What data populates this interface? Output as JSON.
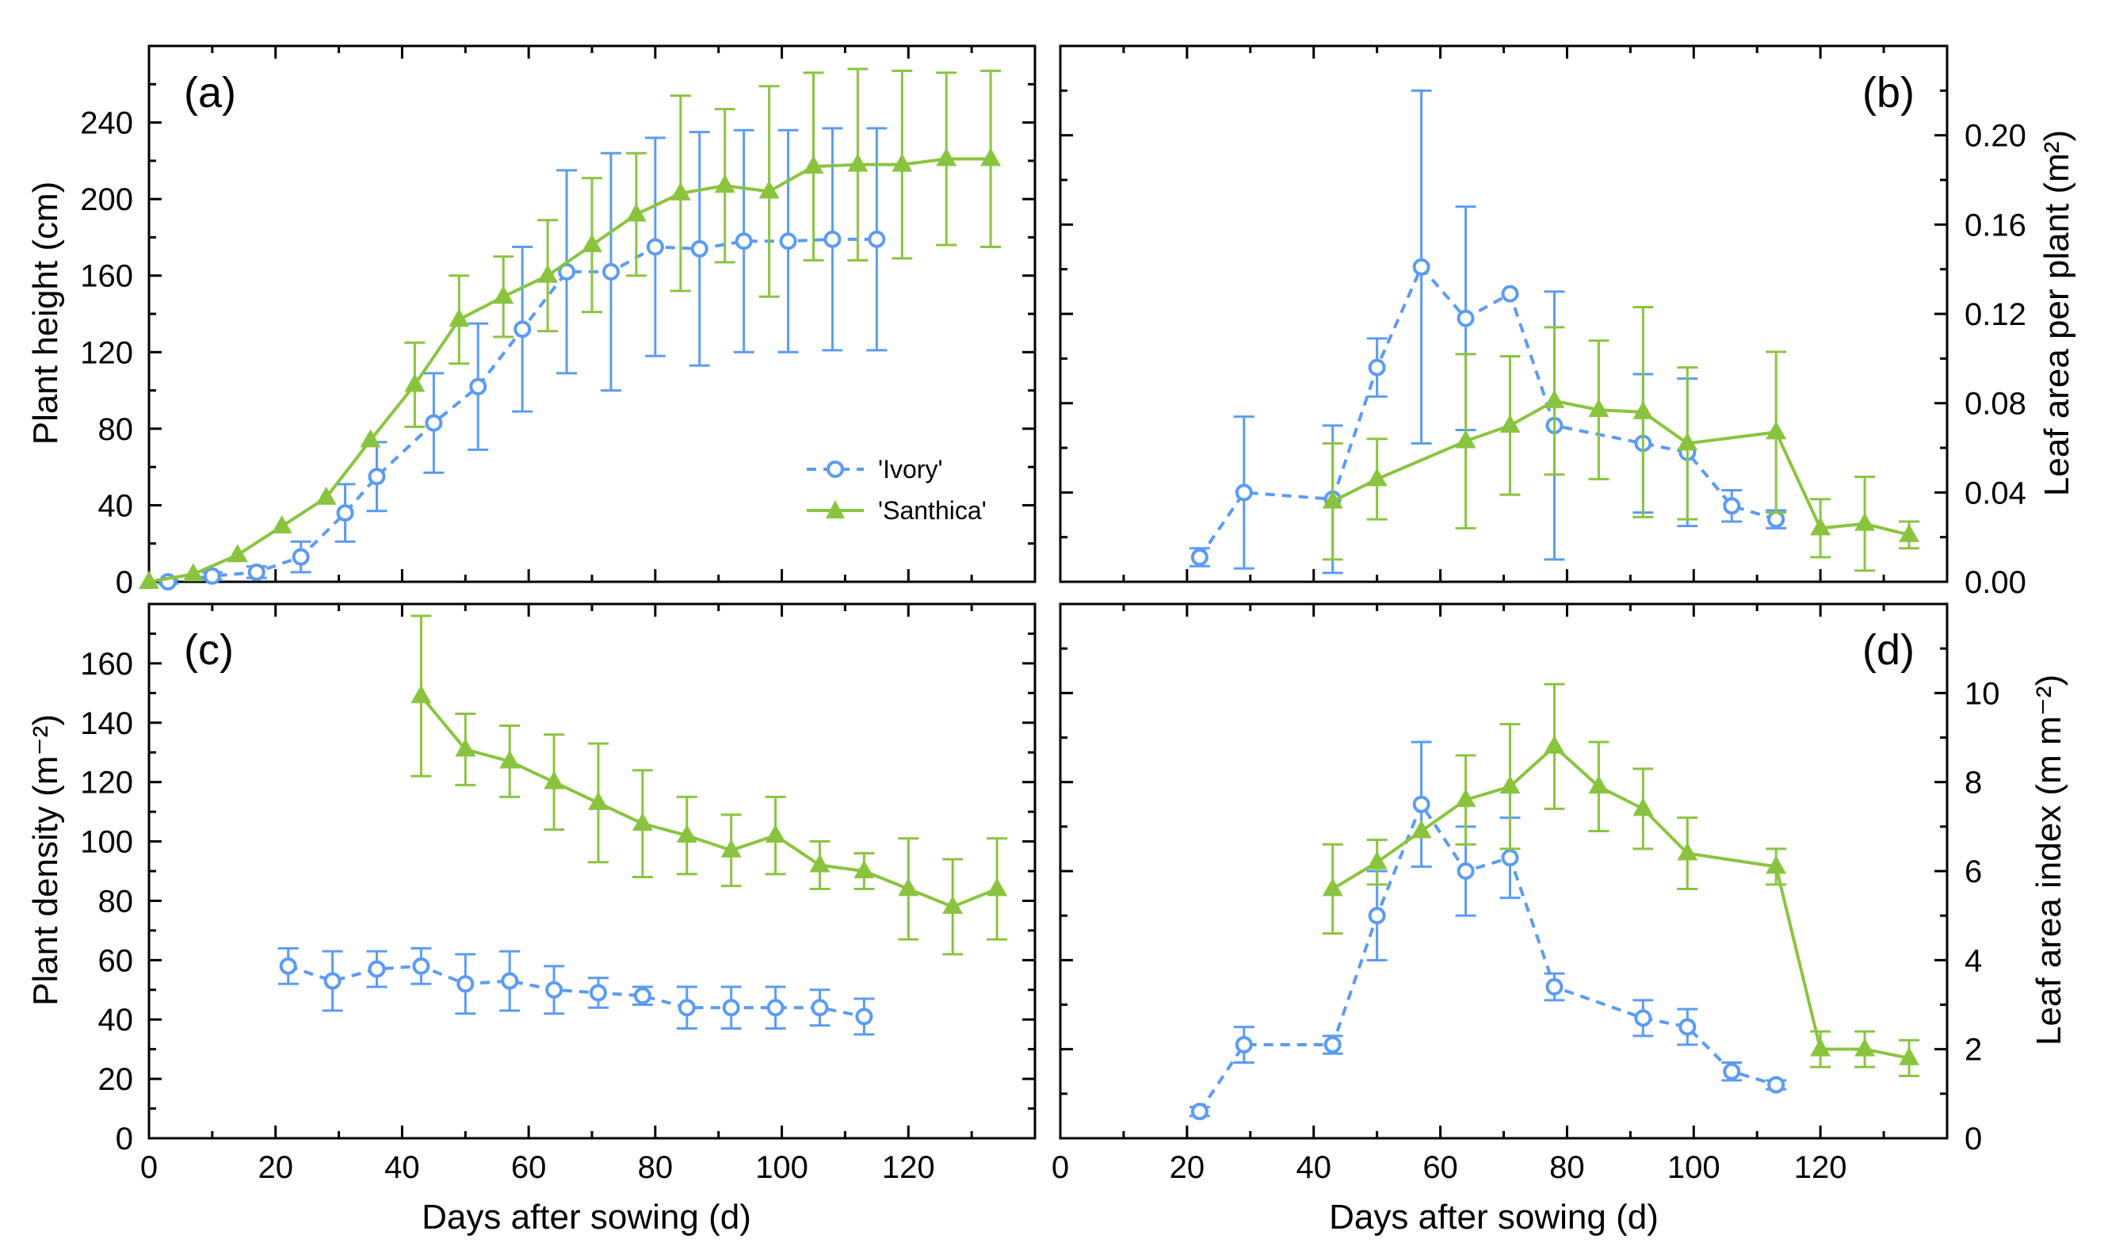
{
  "colors": {
    "ivory": "#5b9bf2",
    "santhica": "#8ac43f",
    "axis": "#000000"
  },
  "legend": {
    "ivory": "'Ivory'",
    "santhica": "'Santhica'"
  },
  "chart_data": [
    {
      "panel": "(a)",
      "type": "line",
      "side": "left",
      "ylabel": "Plant height (cm)",
      "xlabel": "",
      "xlim": [
        0,
        140
      ],
      "ylim": [
        0,
        280
      ],
      "xticks": [
        0,
        20,
        40,
        60,
        80,
        100,
        120
      ],
      "yticks": [
        0,
        40,
        80,
        120,
        160,
        200,
        240
      ],
      "legend_position": "center-right",
      "series": [
        {
          "name": "'Ivory'",
          "style": "dashed-circle",
          "x": [
            3,
            10,
            17,
            24,
            31,
            36,
            45,
            52,
            59,
            66,
            73,
            80,
            87,
            94,
            101,
            108,
            115
          ],
          "y": [
            0,
            3,
            5,
            13,
            36,
            55,
            83,
            102,
            132,
            162,
            162,
            175,
            174,
            178,
            178,
            179,
            179
          ],
          "err": [
            1,
            2,
            3,
            8,
            15,
            18,
            26,
            33,
            43,
            53,
            62,
            57,
            61,
            58,
            58,
            58,
            58
          ]
        },
        {
          "name": "'Santhica'",
          "style": "solid-triangle",
          "x": [
            0,
            7,
            14,
            21,
            28,
            35,
            42,
            49,
            56,
            63,
            70,
            77,
            84,
            91,
            98,
            105,
            112,
            119,
            126,
            133
          ],
          "y": [
            0,
            4,
            14,
            29,
            44,
            74,
            103,
            137,
            149,
            160,
            176,
            192,
            203,
            207,
            204,
            217,
            218,
            218,
            221,
            221
          ],
          "err": [
            0,
            0,
            0,
            0,
            0,
            0,
            22,
            23,
            21,
            29,
            35,
            32,
            51,
            40,
            55,
            49,
            50,
            49,
            45,
            46
          ]
        }
      ]
    },
    {
      "panel": "(b)",
      "type": "line",
      "side": "right",
      "ylabel": "Leaf area per plant (m²)",
      "xlabel": "",
      "xlim": [
        0,
        140
      ],
      "ylim": [
        0,
        0.24
      ],
      "xticks": [
        0,
        20,
        40,
        60,
        80,
        100,
        120
      ],
      "yticks": [
        0.0,
        0.04,
        0.08,
        0.12,
        0.16,
        0.2
      ],
      "ytick_labels": [
        "0.00",
        "0.04",
        "0.08",
        "0.12",
        "0.16",
        "0.20"
      ],
      "series": [
        {
          "name": "'Ivory'",
          "style": "dashed-circle",
          "x": [
            22,
            29,
            43,
            50,
            57,
            64,
            71,
            78,
            92,
            99,
            106,
            113
          ],
          "y": [
            0.011,
            0.04,
            0.037,
            0.096,
            0.141,
            0.118,
            0.129,
            0.07,
            0.062,
            0.058,
            0.034,
            0.028
          ],
          "err": [
            0.004,
            0.034,
            0.033,
            0.013,
            0.079,
            0.05,
            0.0,
            0.06,
            0.031,
            0.033,
            0.007,
            0.004
          ]
        },
        {
          "name": "'Santhica'",
          "style": "solid-triangle",
          "x": [
            43,
            50,
            64,
            71,
            78,
            85,
            92,
            99,
            113,
            120,
            127,
            134
          ],
          "y": [
            0.036,
            0.046,
            0.063,
            0.07,
            0.081,
            0.077,
            0.076,
            0.062,
            0.067,
            0.024,
            0.026,
            0.021
          ],
          "err": [
            0.026,
            0.018,
            0.039,
            0.031,
            0.033,
            0.031,
            0.047,
            0.034,
            0.036,
            0.013,
            0.021,
            0.006
          ]
        }
      ]
    },
    {
      "panel": "(c)",
      "type": "line",
      "side": "left",
      "ylabel": "Plant density (m⁻²)",
      "xlabel": "Days after sowing (d)",
      "xlim": [
        0,
        140
      ],
      "ylim": [
        0,
        180
      ],
      "xticks": [
        0,
        20,
        40,
        60,
        80,
        100,
        120
      ],
      "yticks": [
        0,
        20,
        40,
        60,
        80,
        100,
        120,
        140,
        160
      ],
      "series": [
        {
          "name": "'Ivory'",
          "style": "dashed-circle",
          "x": [
            22,
            29,
            36,
            43,
            50,
            57,
            64,
            71,
            78,
            85,
            92,
            99,
            106,
            113
          ],
          "y": [
            58,
            53,
            57,
            58,
            52,
            53,
            50,
            49,
            48,
            44,
            44,
            44,
            44,
            41
          ],
          "err": [
            6,
            10,
            6,
            6,
            10,
            10,
            8,
            5,
            3,
            7,
            7,
            7,
            6,
            6
          ]
        },
        {
          "name": "'Santhica'",
          "style": "solid-triangle",
          "x": [
            43,
            50,
            57,
            64,
            71,
            78,
            85,
            92,
            99,
            106,
            113,
            120,
            127,
            134
          ],
          "y": [
            149,
            131,
            127,
            120,
            113,
            106,
            102,
            97,
            102,
            92,
            90,
            84,
            78,
            84
          ],
          "err": [
            27,
            12,
            12,
            16,
            20,
            18,
            13,
            12,
            13,
            8,
            6,
            17,
            16,
            17
          ]
        }
      ]
    },
    {
      "panel": "(d)",
      "type": "line",
      "side": "right",
      "ylabel": "Leaf area index (m m⁻²)",
      "xlabel": "Days after sowing (d)",
      "xlim": [
        0,
        140
      ],
      "ylim": [
        0,
        12
      ],
      "xticks": [
        0,
        20,
        40,
        60,
        80,
        100,
        120
      ],
      "yticks": [
        0,
        2,
        4,
        6,
        8,
        10
      ],
      "series": [
        {
          "name": "'Ivory'",
          "style": "dashed-circle",
          "x": [
            22,
            29,
            43,
            50,
            57,
            64,
            71,
            78,
            92,
            99,
            106,
            113
          ],
          "y": [
            0.6,
            2.1,
            2.1,
            5.0,
            7.5,
            6.0,
            6.3,
            3.4,
            2.7,
            2.5,
            1.5,
            1.2
          ],
          "err": [
            0.1,
            0.4,
            0.2,
            1.0,
            1.4,
            1.0,
            0.9,
            0.3,
            0.4,
            0.4,
            0.2,
            0.1
          ]
        },
        {
          "name": "'Santhica'",
          "style": "solid-triangle",
          "x": [
            43,
            50,
            57,
            64,
            71,
            78,
            85,
            92,
            99,
            113,
            120,
            127,
            134
          ],
          "y": [
            5.6,
            6.2,
            6.9,
            7.6,
            7.9,
            8.8,
            7.9,
            7.4,
            6.4,
            6.1,
            2.0,
            2.0,
            1.8
          ],
          "err": [
            1.0,
            0.5,
            0.0,
            1.0,
            1.4,
            1.4,
            1.0,
            0.9,
            0.8,
            0.4,
            0.4,
            0.4,
            0.4
          ]
        }
      ]
    }
  ]
}
